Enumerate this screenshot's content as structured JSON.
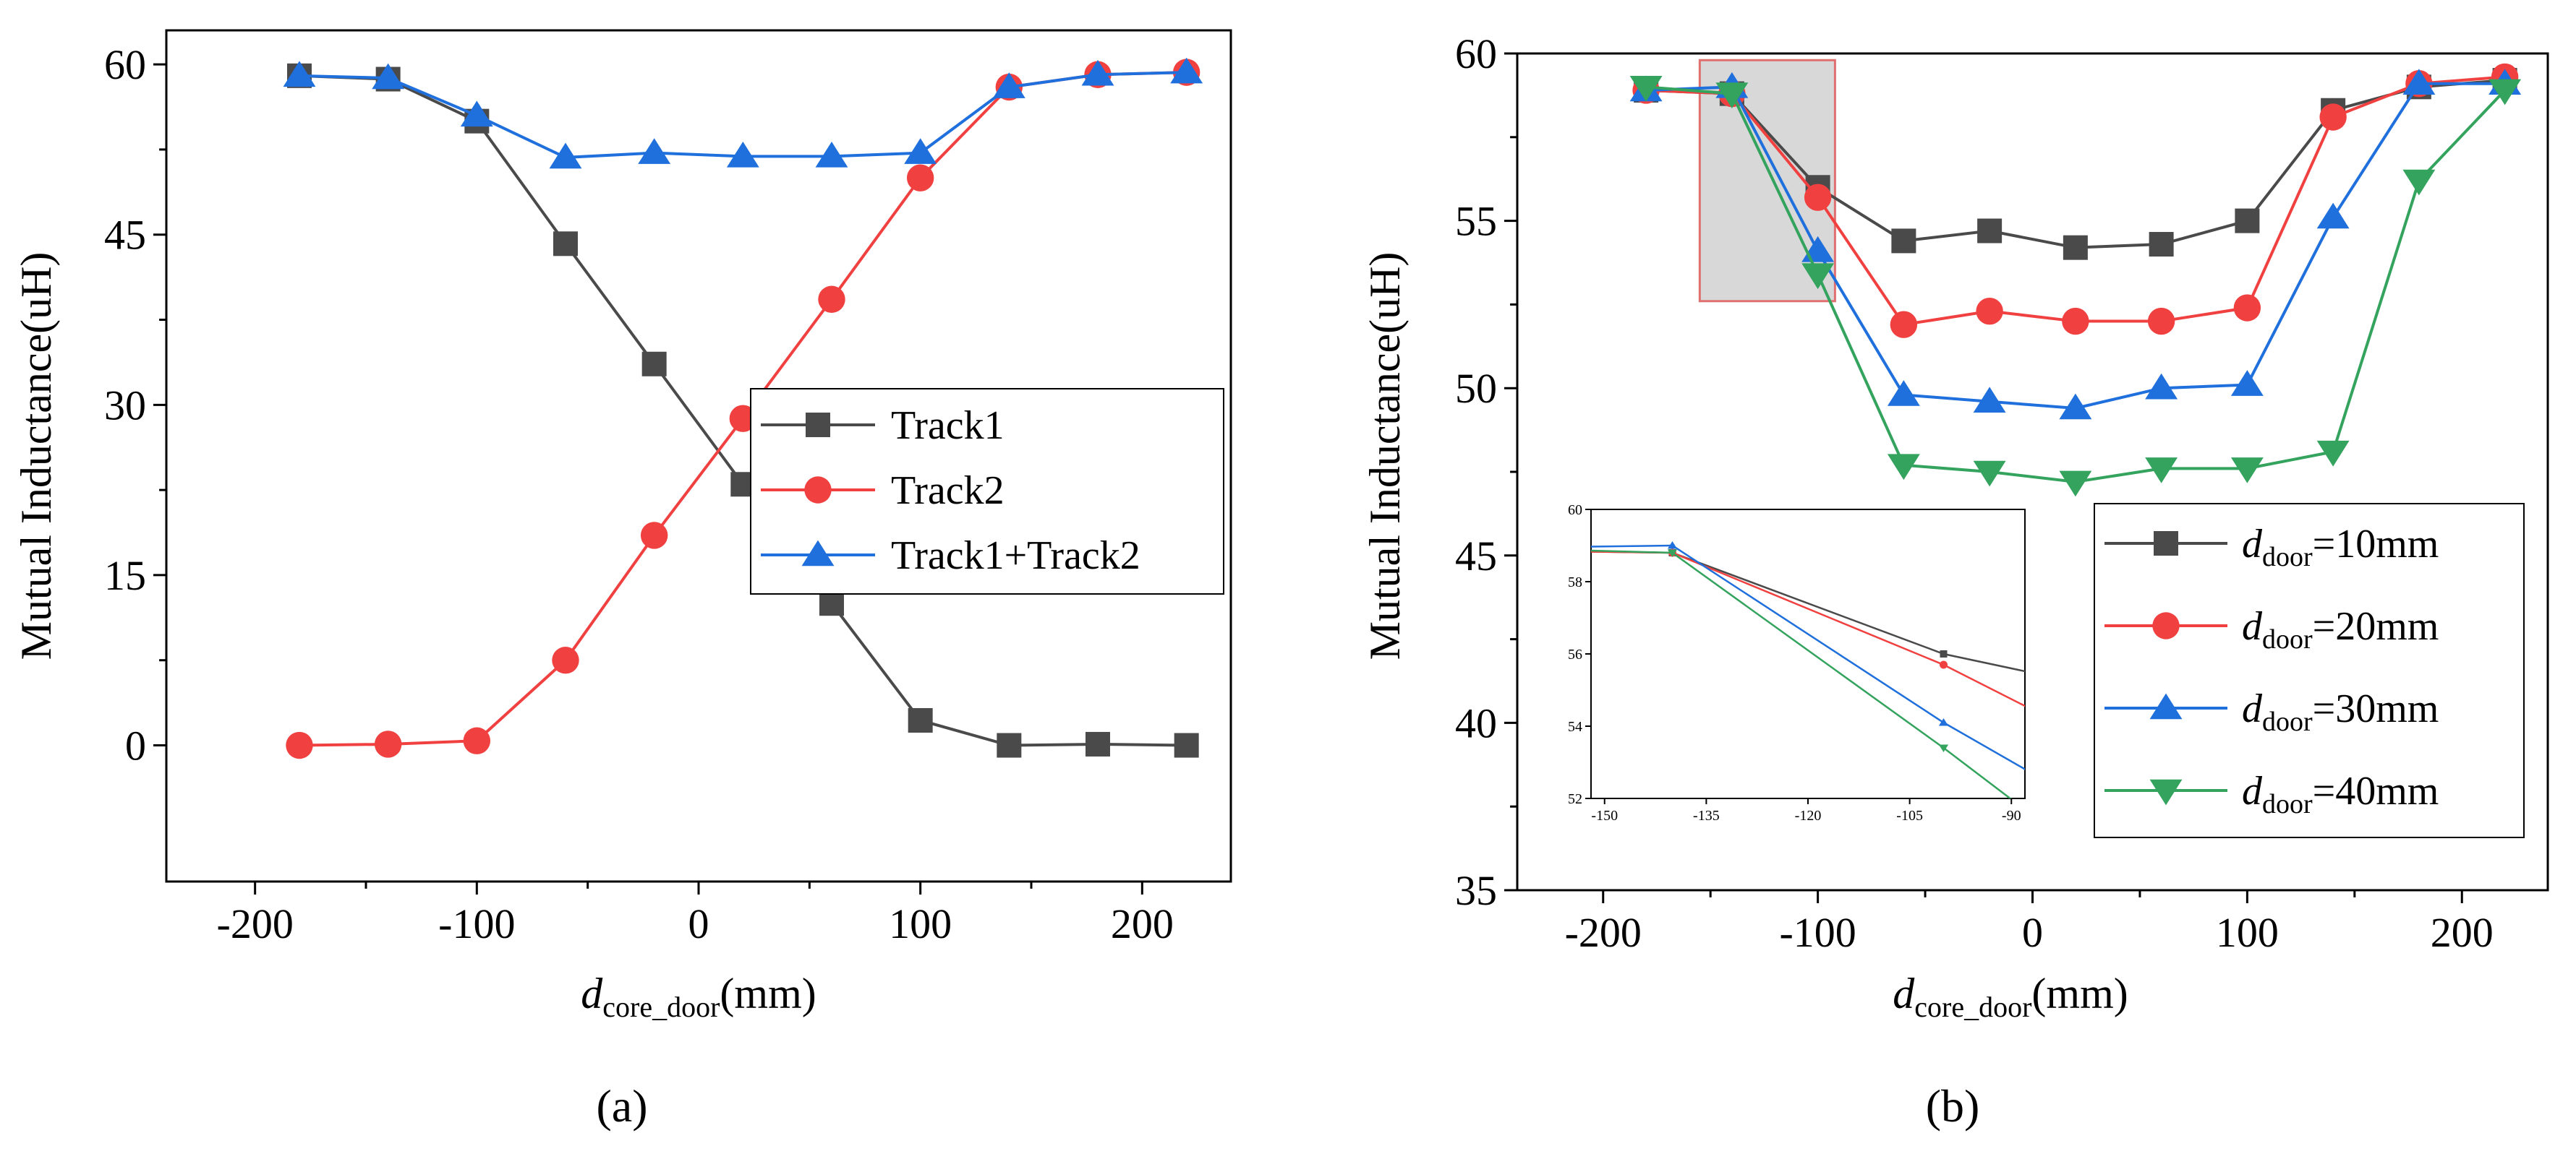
{
  "chart_data": [
    {
      "type": "line",
      "panel_label": "(a)",
      "xlabel": {
        "main": "d",
        "sub": "core_door",
        "unit": "(mm)"
      },
      "ylabel": "Mutual Inductance(uH)",
      "xlim": [
        -240,
        240
      ],
      "ylim": [
        -12,
        63
      ],
      "xticks": [
        -200,
        -100,
        0,
        100,
        200
      ],
      "xtick_labels": [
        "-200",
        "-100",
        "0",
        "100",
        "200"
      ],
      "yticks": [
        0,
        15,
        30,
        45,
        60
      ],
      "ytick_labels": [
        "0",
        "15",
        "30",
        "45",
        "60"
      ],
      "legend_position": "center-right",
      "x": [
        -180,
        -140,
        -100,
        -60,
        -20,
        20,
        60,
        100,
        140,
        180,
        220
      ],
      "series": [
        {
          "name": "Track1",
          "marker": "square",
          "color": "#4a4a4a",
          "values": [
            59,
            58.7,
            55,
            44.2,
            33.6,
            23,
            12.5,
            2.2,
            0,
            0.1,
            0
          ]
        },
        {
          "name": "Track2",
          "marker": "circle",
          "color": "#f04040",
          "values": [
            0,
            0.1,
            0.4,
            7.5,
            18.5,
            28.8,
            39.3,
            50,
            58,
            59.1,
            59.3
          ]
        },
        {
          "name": "Track1+Track2",
          "marker": "triangle-up",
          "color": "#1f6fdc",
          "values": [
            59,
            58.8,
            55.5,
            51.8,
            52.2,
            51.9,
            51.9,
            52.2,
            58,
            59.1,
            59.3
          ]
        }
      ]
    },
    {
      "type": "line",
      "panel_label": "(b)",
      "xlabel": {
        "main": "d",
        "sub": "core_door",
        "unit": "(mm)"
      },
      "ylabel": "Mutual Inductance(uH)",
      "xlim": [
        -240,
        240
      ],
      "ylim": [
        35,
        60
      ],
      "xticks": [
        -200,
        -100,
        0,
        100,
        200
      ],
      "xtick_labels": [
        "-200",
        "-100",
        "0",
        "100",
        "200"
      ],
      "yticks": [
        35,
        40,
        45,
        50,
        55,
        60
      ],
      "ytick_labels": [
        "35",
        "40",
        "45",
        "50",
        "55",
        "60"
      ],
      "legend_position": "bottom-right",
      "x": [
        -180,
        -140,
        -100,
        -60,
        -20,
        20,
        60,
        100,
        140,
        180,
        220
      ],
      "series": [
        {
          "name": "door=10mm",
          "legend_main": "d",
          "legend_sub": "door",
          "legend_rest": "=10mm",
          "marker": "square",
          "color": "#4a4a4a",
          "values": [
            58.9,
            58.8,
            56,
            54.4,
            54.7,
            54.2,
            54.3,
            55,
            58.3,
            59,
            59.2
          ]
        },
        {
          "name": "door=20mm",
          "legend_main": "d",
          "legend_sub": "door",
          "legend_rest": "=20mm",
          "marker": "circle",
          "color": "#f04040",
          "values": [
            58.9,
            58.8,
            55.7,
            51.9,
            52.3,
            52,
            52,
            52.4,
            58.1,
            59.1,
            59.3
          ]
        },
        {
          "name": "door=30mm",
          "legend_main": "d",
          "legend_sub": "door",
          "legend_rest": "=30mm",
          "marker": "triangle-up",
          "color": "#1f6fdc",
          "values": [
            58.9,
            59,
            54.1,
            49.8,
            49.6,
            49.4,
            50,
            50.1,
            55.1,
            59.1,
            59.1
          ]
        },
        {
          "name": "door=40mm",
          "legend_main": "d",
          "legend_sub": "door",
          "legend_rest": "=40mm",
          "marker": "triangle-down",
          "color": "#33a35e",
          "values": [
            59,
            58.8,
            53.4,
            47.7,
            47.5,
            47.2,
            47.6,
            47.6,
            48.1,
            56.2,
            58.9
          ]
        }
      ],
      "highlight_region": {
        "x": [
          -155,
          -92
        ],
        "y": [
          52.6,
          59.8
        ]
      },
      "inset": {
        "xlim": [
          -152,
          -88
        ],
        "ylim": [
          52,
          60
        ],
        "xticks": [
          -150,
          -135,
          -120,
          -105,
          -90
        ],
        "xtick_labels": [
          "-150",
          "-135",
          "-120",
          "-105",
          "-90"
        ],
        "yticks": [
          52,
          54,
          56,
          58,
          60
        ],
        "ytick_labels": [
          "52",
          "54",
          "56",
          "58",
          "60"
        ]
      }
    }
  ]
}
